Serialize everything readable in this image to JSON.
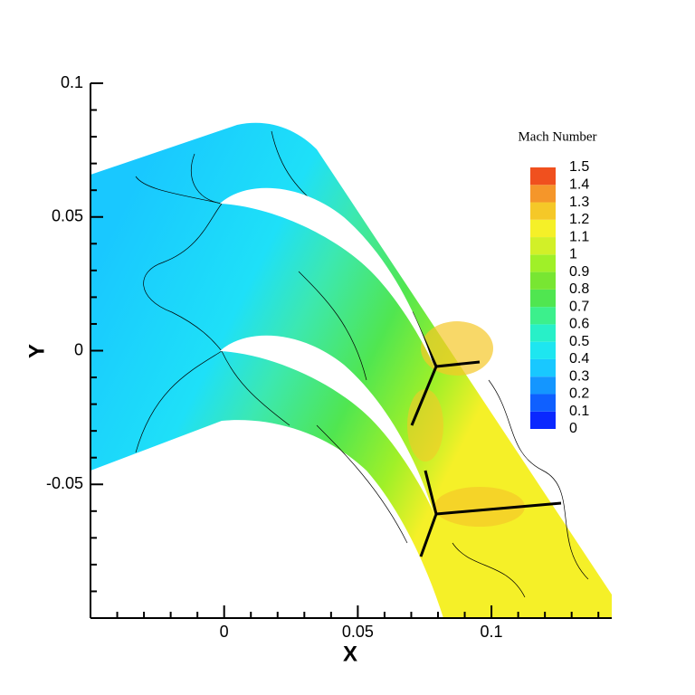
{
  "chart_data": {
    "type": "contour",
    "xlabel": "X",
    "ylabel": "Y",
    "xlim": [
      -0.05,
      0.145
    ],
    "ylim": [
      -0.1,
      0.1
    ],
    "xticks": [
      0,
      0.05,
      0.1
    ],
    "yticks": [
      -0.05,
      0,
      0.05,
      0.1
    ],
    "xminorticks": [
      -0.04,
      -0.03,
      -0.02,
      -0.01,
      0.01,
      0.02,
      0.03,
      0.04,
      0.06,
      0.07,
      0.08,
      0.09,
      0.11,
      0.12,
      0.13,
      0.14
    ],
    "yminorticks": [
      -0.09,
      -0.08,
      -0.07,
      -0.06,
      -0.04,
      -0.03,
      -0.02,
      -0.01,
      0.01,
      0.02,
      0.03,
      0.04,
      0.06,
      0.07,
      0.08,
      0.09
    ],
    "colorbar": {
      "title": "Mach Number",
      "levels": [
        0,
        0.1,
        0.2,
        0.3,
        0.4,
        0.5,
        0.6,
        0.7,
        0.8,
        0.9,
        1,
        1.1,
        1.2,
        1.3,
        1.4,
        1.5
      ],
      "colors": [
        "#0a28ff",
        "#0f60ff",
        "#1496ff",
        "#19c8ff",
        "#1ee6f0",
        "#28f0c8",
        "#3cf08c",
        "#50e650",
        "#78e632",
        "#a0f028",
        "#d2f028",
        "#f5f028",
        "#f5c828",
        "#f5962a",
        "#f0501e"
      ]
    }
  }
}
